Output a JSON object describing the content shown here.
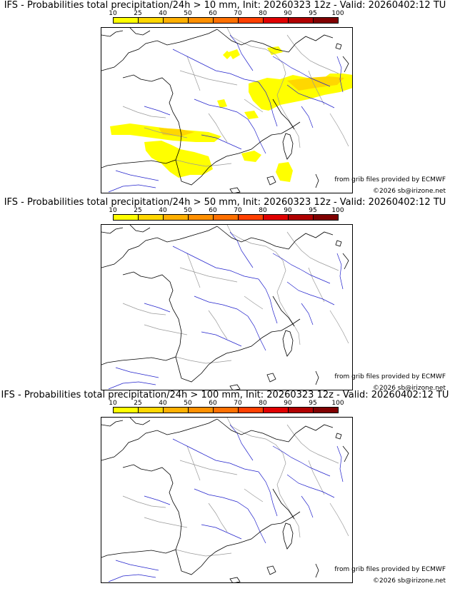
{
  "panels": [
    {
      "title": "IFS - Probabilities total precipitation/24h > 10 mm, Init: 20260323 12z - Valid: 20260402:12 TU",
      "has_probability_areas": true
    },
    {
      "title": "IFS - Probabilities total precipitation/24h > 50 mm, Init: 20260323 12z - Valid: 20260402:12 TU",
      "has_probability_areas": false
    },
    {
      "title": "IFS - Probabilities total precipitation/24h > 100 mm, Init: 20260323 12z - Valid: 20260402:12 TU",
      "has_probability_areas": false
    }
  ],
  "scale": {
    "ticks": [
      "10",
      "25",
      "40",
      "50",
      "60",
      "70",
      "80",
      "90",
      "95",
      "100"
    ],
    "colors": [
      "#ffff00",
      "#ffd700",
      "#ffb000",
      "#ff9000",
      "#ff7000",
      "#ff4000",
      "#e00000",
      "#b00000",
      "#800000"
    ]
  },
  "credits": {
    "grib": "from grib files provided by ECMWF",
    "copyright": "©2026 sb@irizone.net"
  },
  "map_colors": {
    "coast": "#000000",
    "rivers": "#2222cc",
    "borders": "#999999"
  }
}
